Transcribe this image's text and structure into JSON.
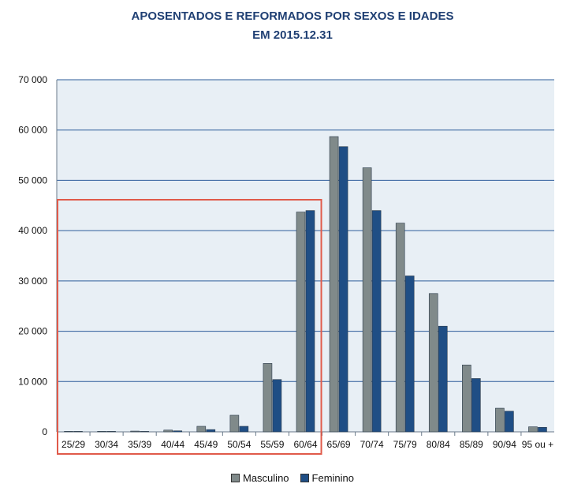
{
  "chart_data": {
    "type": "bar",
    "title": "APOSENTADOS E REFORMADOS POR SEXOS E IDADES",
    "subtitle": "EM 2015.12.31",
    "xlabel": "",
    "ylabel": "",
    "ylim": [
      0,
      70000
    ],
    "yticks": [
      "0",
      "10 000",
      "20 000",
      "30 000",
      "40 000",
      "50 000",
      "60 000",
      "70 000"
    ],
    "grid": true,
    "legend_position": "bottom-center",
    "categories": [
      "25/29",
      "30/34",
      "35/39",
      "40/44",
      "45/49",
      "50/54",
      "55/59",
      "60/64",
      "65/69",
      "70/74",
      "75/79",
      "80/84",
      "85/89",
      "90/94",
      "95 ou +"
    ],
    "series": [
      {
        "name": "Masculino",
        "color": "#808a8a",
        "values": [
          20,
          80,
          150,
          350,
          1100,
          3300,
          13600,
          43700,
          58700,
          52500,
          41500,
          27500,
          13300,
          4700,
          1000
        ]
      },
      {
        "name": "Feminino",
        "color": "#1f4e85",
        "values": [
          10,
          40,
          90,
          200,
          450,
          1100,
          10400,
          44000,
          56700,
          44000,
          31000,
          21000,
          10600,
          4100,
          900
        ]
      }
    ],
    "highlight": {
      "categories": [
        "25/29",
        "60/64"
      ],
      "color": "#e05a4a"
    },
    "plot_background": "#e8eff5"
  }
}
